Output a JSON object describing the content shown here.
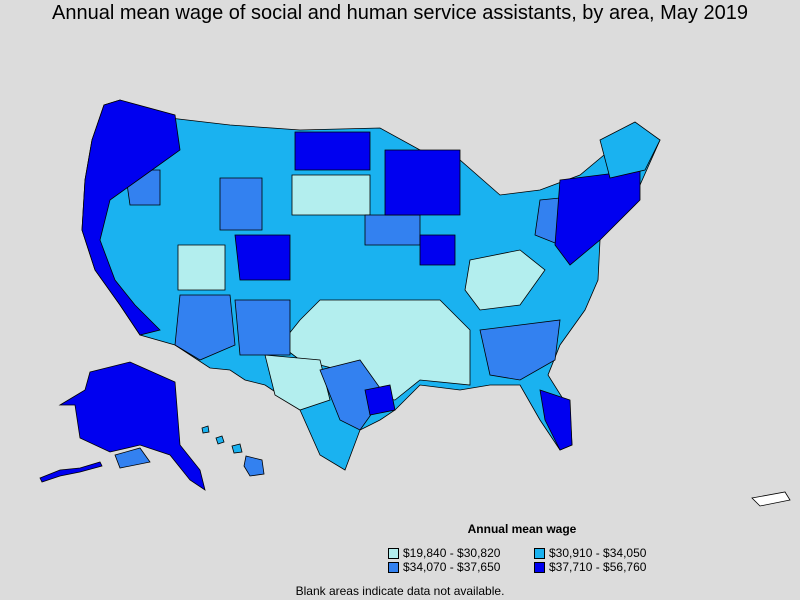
{
  "title": "Annual mean wage of social and human service assistants, by area, May 2019",
  "legend": {
    "title": "Annual mean wage",
    "items": [
      {
        "label": "$19,840 - $30,820",
        "color": "#b3eeee"
      },
      {
        "label": "$30,910 - $34,050",
        "color": "#1ab2f0"
      },
      {
        "label": "$34,070 - $37,650",
        "color": "#3381f0"
      },
      {
        "label": "$37,710 - $56,760",
        "color": "#0000f0"
      }
    ]
  },
  "note": "Blank areas indicate data not available.",
  "colors": {
    "background": "#dcdcdc",
    "border": "#000000",
    "blank": "#ffffff"
  }
}
